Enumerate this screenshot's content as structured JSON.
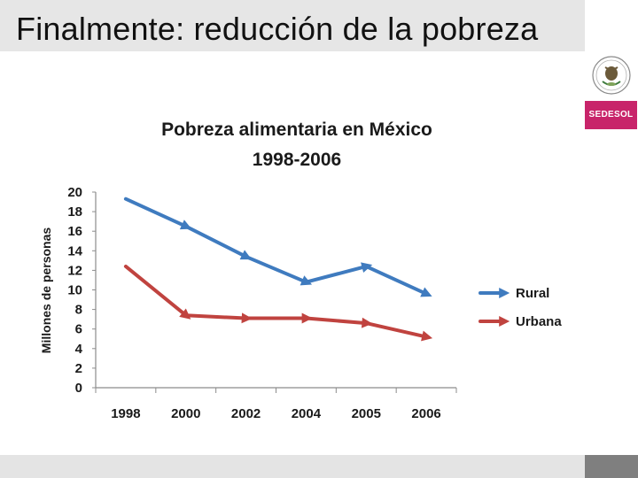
{
  "slide": {
    "title": "Finalmente: reducción de la pobreza",
    "logo_text": "SEDESOL"
  },
  "colors": {
    "rural": "#3f7bbf",
    "urbana": "#c0433f",
    "brand": "#c8246a"
  },
  "chart_data": {
    "type": "line",
    "title_line1": "Pobreza alimentaria  en México",
    "title_line2": "1998-2006",
    "ylabel": "Millones de personas",
    "xlabel": "",
    "ylim": [
      0,
      20
    ],
    "yticks": [
      0,
      2,
      4,
      6,
      8,
      10,
      12,
      14,
      16,
      18,
      20
    ],
    "categories": [
      "1998",
      "2000",
      "2002",
      "2004",
      "2005",
      "2006"
    ],
    "series": [
      {
        "name": "Rural",
        "values": [
          19.3,
          16.5,
          13.4,
          10.8,
          12.4,
          9.6
        ]
      },
      {
        "name": "Urbana",
        "values": [
          12.4,
          7.4,
          7.1,
          7.1,
          6.6,
          5.2
        ]
      }
    ],
    "legend": "right"
  }
}
